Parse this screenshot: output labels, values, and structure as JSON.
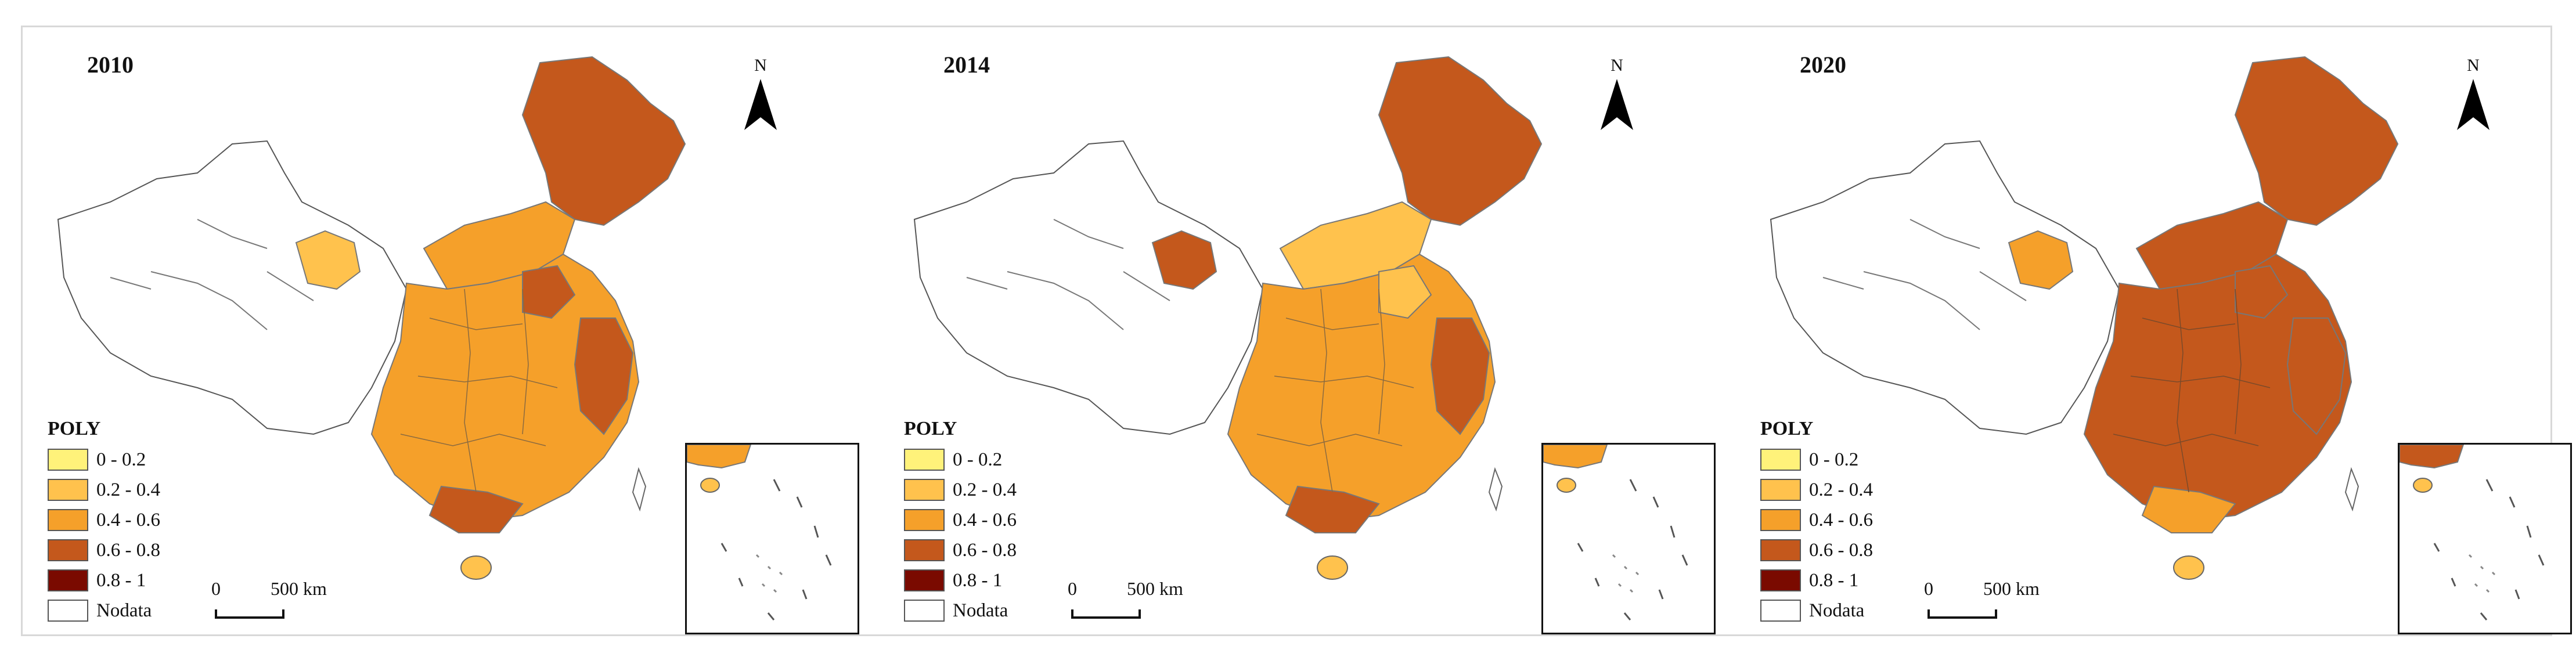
{
  "figure": {
    "legend_title": "POLY",
    "north_label": "N",
    "scale_zero": "0",
    "scale_distance": "500 km",
    "classes": [
      {
        "label": "0 - 0.2",
        "color": "#fff27a"
      },
      {
        "label": "0.2 - 0.4",
        "color": "#ffc24d"
      },
      {
        "label": "0.4 - 0.6",
        "color": "#f5a02a"
      },
      {
        "label": "0.6 - 0.8",
        "color": "#c4581c"
      },
      {
        "label": "0.8 - 1",
        "color": "#7a0a00"
      },
      {
        "label": "Nodata",
        "color": "#ffffff"
      }
    ]
  },
  "panels": [
    {
      "year": "2010",
      "dominant_class": "0.4 - 0.6"
    },
    {
      "year": "2014",
      "dominant_class": "0.4 - 0.6"
    },
    {
      "year": "2020",
      "dominant_class": "0.6 - 0.8"
    }
  ]
}
